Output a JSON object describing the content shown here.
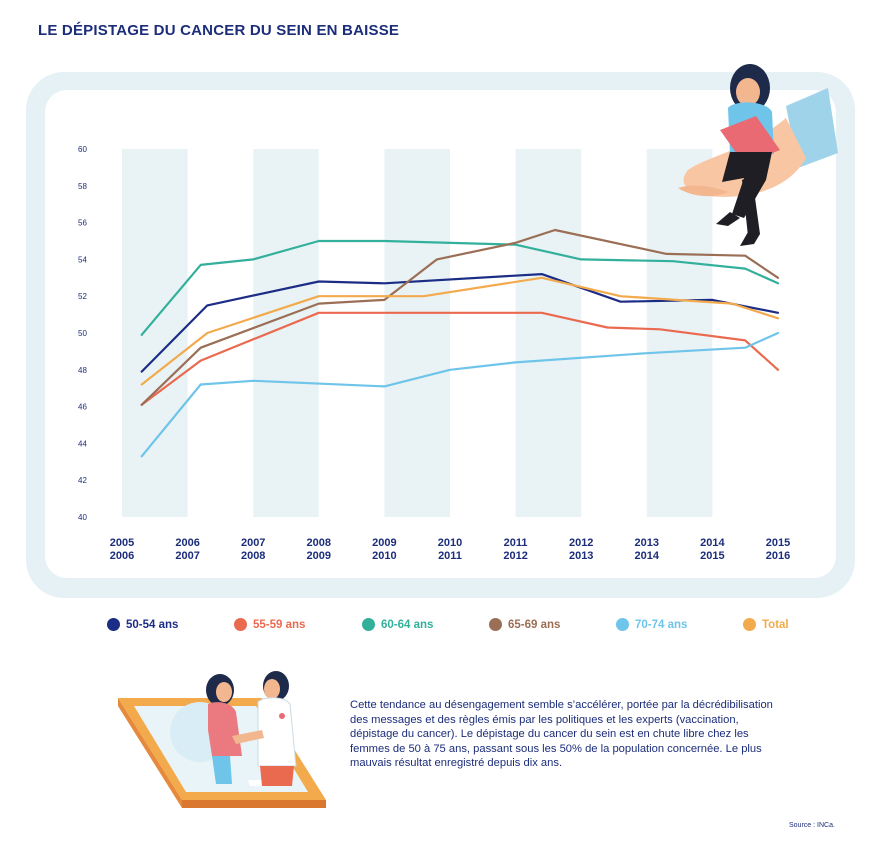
{
  "title": "LE DÉPISTAGE DU CANCER DU SEIN EN BAISSE",
  "chart_data": {
    "type": "line",
    "title": "LE DÉPISTAGE DU CANCER DU SEIN EN BAISSE",
    "xlabel": "",
    "ylabel": "",
    "ylim": [
      40,
      60
    ],
    "yticks": [
      40,
      42,
      44,
      46,
      48,
      50,
      52,
      54,
      56,
      58,
      60
    ],
    "categories": [
      [
        "2005",
        "2006"
      ],
      [
        "2006",
        "2007"
      ],
      [
        "2007",
        "2008"
      ],
      [
        "2008",
        "2009"
      ],
      [
        "2009",
        "2010"
      ],
      [
        "2010",
        "2011"
      ],
      [
        "2011",
        "2012"
      ],
      [
        "2012",
        "2013"
      ],
      [
        "2013",
        "2014"
      ],
      [
        "2014",
        "2015"
      ],
      [
        "2015",
        "2016"
      ]
    ],
    "grid": "alternating vertical bands",
    "legend_position": "bottom",
    "series": [
      {
        "name": "50-54 ans",
        "color": "#1c2d86",
        "points": [
          [
            0.3,
            47.9
          ],
          [
            1.3,
            51.5
          ],
          [
            3.0,
            52.8
          ],
          [
            4.0,
            52.7
          ],
          [
            6.4,
            53.2
          ],
          [
            7.6,
            51.7
          ],
          [
            9.0,
            51.8
          ],
          [
            10.0,
            51.1
          ]
        ]
      },
      {
        "name": "55-59 ans",
        "color": "#ea6a50",
        "points": [
          [
            0.3,
            46.1
          ],
          [
            1.2,
            48.5
          ],
          [
            3.0,
            51.1
          ],
          [
            6.4,
            51.1
          ],
          [
            7.4,
            50.3
          ],
          [
            8.2,
            50.2
          ],
          [
            9.5,
            49.6
          ],
          [
            10.0,
            48.0
          ]
        ]
      },
      {
        "name": "60-64 ans",
        "color": "#33b09b",
        "points": [
          [
            0.3,
            49.9
          ],
          [
            1.2,
            53.7
          ],
          [
            2.0,
            54.0
          ],
          [
            3.0,
            55.0
          ],
          [
            4.0,
            55.0
          ],
          [
            6.0,
            54.8
          ],
          [
            7.0,
            54.0
          ],
          [
            8.4,
            53.9
          ],
          [
            9.5,
            53.5
          ],
          [
            10.0,
            52.7
          ]
        ]
      },
      {
        "name": "65-69 ans",
        "color": "#9b6f55",
        "points": [
          [
            0.3,
            46.1
          ],
          [
            1.2,
            49.2
          ],
          [
            3.0,
            51.6
          ],
          [
            4.0,
            51.8
          ],
          [
            4.8,
            54.0
          ],
          [
            6.0,
            54.9
          ],
          [
            6.6,
            55.6
          ],
          [
            8.3,
            54.3
          ],
          [
            9.5,
            54.2
          ],
          [
            10.0,
            53.0
          ]
        ]
      },
      {
        "name": "70-74 ans",
        "color": "#6fc4ea",
        "points": [
          [
            0.3,
            43.3
          ],
          [
            1.2,
            47.2
          ],
          [
            2.0,
            47.4
          ],
          [
            4.0,
            47.1
          ],
          [
            5.0,
            48.0
          ],
          [
            6.0,
            48.4
          ],
          [
            8.0,
            48.9
          ],
          [
            9.5,
            49.2
          ],
          [
            10.0,
            50.0
          ]
        ]
      },
      {
        "name": "Total",
        "color": "#f2aa4c",
        "points": [
          [
            0.3,
            47.2
          ],
          [
            1.3,
            50.0
          ],
          [
            3.0,
            52.0
          ],
          [
            4.6,
            52.0
          ],
          [
            6.4,
            53.0
          ],
          [
            7.6,
            52.0
          ],
          [
            9.3,
            51.6
          ],
          [
            10.0,
            50.8
          ]
        ]
      }
    ]
  },
  "legend": [
    {
      "label": "50-54 ans",
      "color": "#1c2d86"
    },
    {
      "label": "55-59 ans",
      "color": "#ea6a50"
    },
    {
      "label": "60-64 ans",
      "color": "#33b09b"
    },
    {
      "label": "65-69 ans",
      "color": "#9b6f55"
    },
    {
      "label": "70-74 ans",
      "color": "#6fc4ea"
    },
    {
      "label": "Total",
      "color": "#f2aa4c"
    }
  ],
  "body_text": "Cette tendance au désengagement semble s’accélérer, portée par la décrédibilisation des messages et des règles émis par les politiques et les experts (vaccination, dépistage du cancer). Le dépistage du cancer du sein est en chute libre chez les femmes de 50 à 75 ans, passant sous les 50% de la population concernée. Le plus mauvais résultat enregistré depuis dix ans.",
  "source": "Source : INCa."
}
